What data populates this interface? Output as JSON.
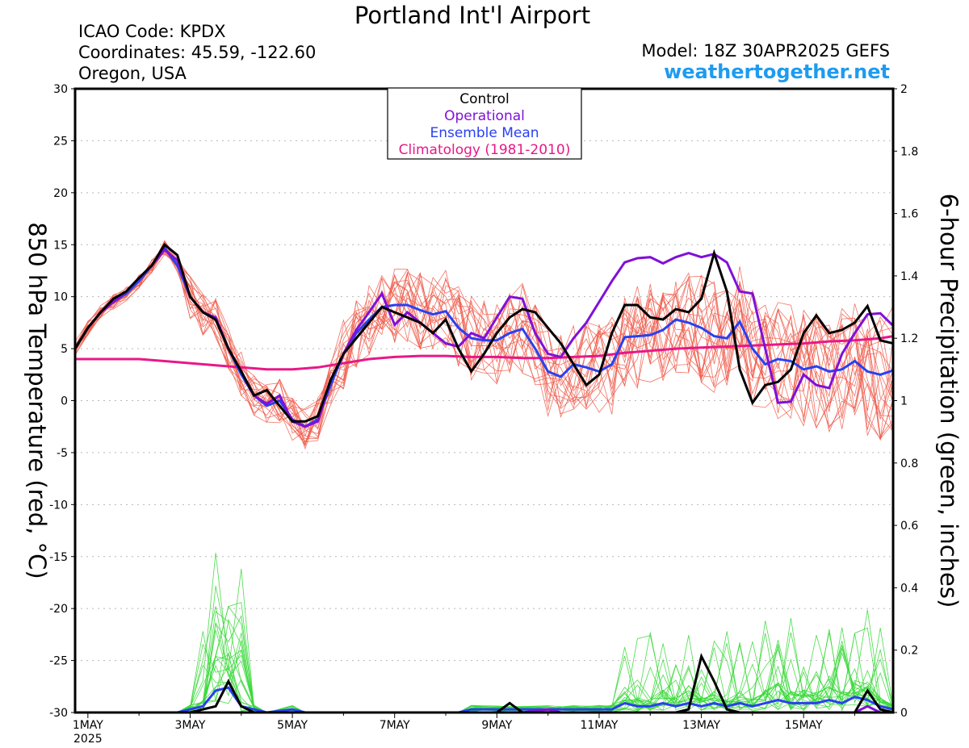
{
  "header": {
    "title": "Portland Int'l Airport",
    "icao": "ICAO Code: KPDX",
    "coords": "Coordinates: 45.59, -122.60",
    "region": "Oregon, USA",
    "model": "Model: 18Z 30APR2025 GEFS",
    "website": "weathertogether.net"
  },
  "legend": {
    "control": "Control",
    "operational": "Operational",
    "mean": "Ensemble Mean",
    "climo": "Climatology (1981-2010)"
  },
  "colors": {
    "control": "#000000",
    "operational": "#8010d8",
    "mean": "#2a40f0",
    "climo": "#e81888",
    "members_temp": "#f05a4a",
    "members_precip": "#38d838",
    "website": "#1e9bf0"
  },
  "chart_data": {
    "type": "line",
    "x_unit": "days since 1 May 2025 00Z",
    "x_ticks": [
      {
        "x": 0,
        "label": "1MAY",
        "sub": "2025"
      },
      {
        "x": 2,
        "label": "3MAY"
      },
      {
        "x": 4,
        "label": "5MAY"
      },
      {
        "x": 6,
        "label": "7MAY"
      },
      {
        "x": 8,
        "label": "9MAY"
      },
      {
        "x": 10,
        "label": "11MAY"
      },
      {
        "x": 12,
        "label": "13MAY"
      },
      {
        "x": 14,
        "label": "15MAY"
      }
    ],
    "xlim": [
      -0.25,
      15.75
    ],
    "ylabel_left": "850 hPa Temperature (red, °C)",
    "ylabel_right": "6-hour Precipitation (green, inches)",
    "ylim_left": [
      -30,
      30
    ],
    "ylim_right": [
      0,
      2
    ],
    "yticks_left": [
      30,
      25,
      20,
      15,
      10,
      5,
      0,
      -5,
      -10,
      -15,
      -20,
      -25,
      -30
    ],
    "yticks_right": [
      "2",
      "1.8",
      "1.6",
      "1.4",
      "1.2",
      "1",
      "0.8",
      "0.6",
      "0.4",
      "0.2",
      "0"
    ],
    "grid": true,
    "temperature": {
      "control": [
        [
          -0.25,
          5
        ],
        [
          0,
          7
        ],
        [
          0.25,
          8.5
        ],
        [
          0.5,
          9.8
        ],
        [
          0.75,
          10.5
        ],
        [
          1,
          11.8
        ],
        [
          1.25,
          13
        ],
        [
          1.5,
          15
        ],
        [
          1.75,
          14
        ],
        [
          2,
          10
        ],
        [
          2.25,
          8.5
        ],
        [
          2.5,
          7.8
        ],
        [
          2.75,
          5
        ],
        [
          3,
          2.8
        ],
        [
          3.25,
          0.5
        ],
        [
          3.5,
          1
        ],
        [
          3.75,
          -0.5
        ],
        [
          4,
          -2
        ],
        [
          4.25,
          -2
        ],
        [
          4.5,
          -1.5
        ],
        [
          4.75,
          2
        ],
        [
          5,
          4.5
        ],
        [
          5.25,
          6
        ],
        [
          5.5,
          7.5
        ],
        [
          5.75,
          9
        ],
        [
          6,
          8.5
        ],
        [
          6.25,
          8
        ],
        [
          6.5,
          7.5
        ],
        [
          6.75,
          6.5
        ],
        [
          7,
          7.8
        ],
        [
          7.25,
          5
        ],
        [
          7.5,
          2.8
        ],
        [
          7.75,
          4.5
        ],
        [
          8,
          6.5
        ],
        [
          8.25,
          8
        ],
        [
          8.5,
          8.8
        ],
        [
          8.75,
          8.5
        ],
        [
          9,
          7
        ],
        [
          9.25,
          5.5
        ],
        [
          9.5,
          3.5
        ],
        [
          9.75,
          1.5
        ],
        [
          10,
          2.5
        ],
        [
          10.25,
          6.5
        ],
        [
          10.5,
          9.2
        ],
        [
          10.75,
          9.2
        ],
        [
          11,
          8
        ],
        [
          11.25,
          7.8
        ],
        [
          11.5,
          8.8
        ],
        [
          11.75,
          8.5
        ],
        [
          12,
          9.8
        ],
        [
          12.25,
          14.2
        ],
        [
          12.5,
          10.5
        ],
        [
          12.75,
          3
        ],
        [
          13,
          -0.2
        ],
        [
          13.25,
          1.5
        ],
        [
          13.5,
          1.8
        ],
        [
          13.75,
          3
        ],
        [
          14,
          6.5
        ],
        [
          14.25,
          8.2
        ],
        [
          14.5,
          6.5
        ],
        [
          14.75,
          6.8
        ],
        [
          15,
          7.5
        ],
        [
          15.25,
          9.1
        ],
        [
          15.5,
          5.8
        ],
        [
          15.75,
          5.5
        ]
      ],
      "operational": [
        [
          -0.25,
          5
        ],
        [
          0,
          7
        ],
        [
          0.25,
          8.5
        ],
        [
          0.5,
          9.5
        ],
        [
          0.75,
          10.5
        ],
        [
          1,
          11.8
        ],
        [
          1.25,
          13
        ],
        [
          1.5,
          14.5
        ],
        [
          1.75,
          13.5
        ],
        [
          2,
          10
        ],
        [
          2.25,
          8.5
        ],
        [
          2.5,
          8
        ],
        [
          2.75,
          5
        ],
        [
          3,
          2.8
        ],
        [
          3.25,
          0.5
        ],
        [
          3.5,
          -0.3
        ],
        [
          3.75,
          0.5
        ],
        [
          4,
          -2
        ],
        [
          4.25,
          -2.5
        ],
        [
          4.5,
          -2
        ],
        [
          4.75,
          2
        ],
        [
          5,
          4.5
        ],
        [
          5.25,
          6.8
        ],
        [
          5.5,
          8.5
        ],
        [
          5.75,
          10.3
        ],
        [
          6,
          7.3
        ],
        [
          6.25,
          8.5
        ],
        [
          6.5,
          7.5
        ],
        [
          6.75,
          6.5
        ],
        [
          7,
          5.5
        ],
        [
          7.25,
          5.2
        ],
        [
          7.5,
          6.5
        ],
        [
          7.75,
          6
        ],
        [
          8,
          8
        ],
        [
          8.25,
          10
        ],
        [
          8.5,
          9.8
        ],
        [
          8.75,
          6.5
        ],
        [
          9,
          4.5
        ],
        [
          9.25,
          4.2
        ],
        [
          9.5,
          6
        ],
        [
          9.75,
          7.5
        ],
        [
          10,
          9.5
        ],
        [
          10.25,
          11.5
        ],
        [
          10.5,
          13.3
        ],
        [
          10.75,
          13.7
        ],
        [
          11,
          13.8
        ],
        [
          11.25,
          13.2
        ],
        [
          11.5,
          13.8
        ],
        [
          11.75,
          14.2
        ],
        [
          12,
          13.8
        ],
        [
          12.25,
          14.1
        ],
        [
          12.5,
          13.3
        ],
        [
          12.75,
          10.5
        ],
        [
          13,
          10.3
        ],
        [
          13.25,
          5
        ],
        [
          13.5,
          -0.2
        ],
        [
          13.75,
          -0.1
        ],
        [
          14,
          2.5
        ],
        [
          14.25,
          1.5
        ],
        [
          14.5,
          1.2
        ],
        [
          14.75,
          4.5
        ],
        [
          15,
          6.5
        ],
        [
          15.25,
          8.3
        ],
        [
          15.5,
          8.4
        ],
        [
          15.75,
          7.2
        ]
      ],
      "mean": [
        [
          -0.25,
          5
        ],
        [
          0,
          7
        ],
        [
          0.25,
          8.5
        ],
        [
          0.5,
          9.5
        ],
        [
          0.75,
          10.3
        ],
        [
          1,
          11.5
        ],
        [
          1.25,
          13
        ],
        [
          1.5,
          14.7
        ],
        [
          1.75,
          13
        ],
        [
          2,
          10
        ],
        [
          2.25,
          8.5
        ],
        [
          2.5,
          7.8
        ],
        [
          2.75,
          5
        ],
        [
          3,
          2.5
        ],
        [
          3.25,
          0.5
        ],
        [
          3.5,
          -0.5
        ],
        [
          3.75,
          0
        ],
        [
          4,
          -1.8
        ],
        [
          4.25,
          -2.5
        ],
        [
          4.5,
          -1.8
        ],
        [
          4.75,
          1.5
        ],
        [
          5,
          4.5
        ],
        [
          5.25,
          6.5
        ],
        [
          5.5,
          7.8
        ],
        [
          5.75,
          9
        ],
        [
          6,
          9.2
        ],
        [
          6.25,
          9.2
        ],
        [
          6.5,
          8.7
        ],
        [
          6.75,
          8.3
        ],
        [
          7,
          8.6
        ],
        [
          7.25,
          7
        ],
        [
          7.5,
          6
        ],
        [
          7.75,
          5.8
        ],
        [
          8,
          5.8
        ],
        [
          8.25,
          6.5
        ],
        [
          8.5,
          6.9
        ],
        [
          8.75,
          5
        ],
        [
          9,
          2.8
        ],
        [
          9.25,
          2.3
        ],
        [
          9.5,
          3.5
        ],
        [
          9.75,
          3.2
        ],
        [
          10,
          2.8
        ],
        [
          10.25,
          3.5
        ],
        [
          10.5,
          6.1
        ],
        [
          10.75,
          6.2
        ],
        [
          11,
          6.3
        ],
        [
          11.25,
          6.8
        ],
        [
          11.5,
          7.8
        ],
        [
          11.75,
          7.5
        ],
        [
          12,
          7
        ],
        [
          12.25,
          6.2
        ],
        [
          12.5,
          6
        ],
        [
          12.75,
          7.6
        ],
        [
          13,
          5
        ],
        [
          13.25,
          3.5
        ],
        [
          13.5,
          4
        ],
        [
          13.75,
          3.8
        ],
        [
          14,
          3
        ],
        [
          14.25,
          3.3
        ],
        [
          14.5,
          2.8
        ],
        [
          14.75,
          3
        ],
        [
          15,
          3.8
        ],
        [
          15.25,
          2.8
        ],
        [
          15.5,
          2.5
        ],
        [
          15.75,
          2.9
        ]
      ],
      "climatology": [
        [
          -0.25,
          4
        ],
        [
          0.5,
          4
        ],
        [
          1,
          4
        ],
        [
          1.5,
          3.8
        ],
        [
          2,
          3.6
        ],
        [
          2.5,
          3.4
        ],
        [
          3,
          3.2
        ],
        [
          3.5,
          3
        ],
        [
          4,
          3
        ],
        [
          4.5,
          3.2
        ],
        [
          5,
          3.6
        ],
        [
          5.5,
          4
        ],
        [
          6,
          4.2
        ],
        [
          6.5,
          4.3
        ],
        [
          7,
          4.3
        ],
        [
          7.5,
          4.2
        ],
        [
          8,
          4.2
        ],
        [
          8.5,
          4.1
        ],
        [
          9,
          4.1
        ],
        [
          9.5,
          4.2
        ],
        [
          10,
          4.3
        ],
        [
          10.5,
          4.6
        ],
        [
          11,
          4.8
        ],
        [
          11.5,
          5
        ],
        [
          12,
          5.1
        ],
        [
          12.5,
          5.2
        ],
        [
          13,
          5.3
        ],
        [
          13.5,
          5.4
        ],
        [
          14,
          5.5
        ],
        [
          14.5,
          5.7
        ],
        [
          15,
          5.8
        ],
        [
          15.5,
          6
        ],
        [
          15.75,
          6.2
        ]
      ]
    },
    "precipitation": {
      "control": [
        [
          -0.25,
          0
        ],
        [
          1.75,
          0
        ],
        [
          2,
          0
        ],
        [
          2.25,
          0.01
        ],
        [
          2.5,
          0.02
        ],
        [
          2.75,
          0.1
        ],
        [
          3,
          0.02
        ],
        [
          3.25,
          0
        ],
        [
          8,
          0
        ],
        [
          8.25,
          0.03
        ],
        [
          8.5,
          0
        ],
        [
          11.5,
          0
        ],
        [
          11.75,
          0.01
        ],
        [
          12,
          0.18
        ],
        [
          12.25,
          0.1
        ],
        [
          12.5,
          0.01
        ],
        [
          12.75,
          0
        ],
        [
          15,
          0
        ],
        [
          15.25,
          0.07
        ],
        [
          15.5,
          0.01
        ],
        [
          15.75,
          0
        ]
      ],
      "operational": [
        [
          -0.25,
          0
        ],
        [
          8.5,
          0
        ],
        [
          9,
          0.01
        ],
        [
          9.25,
          0
        ],
        [
          15,
          0
        ],
        [
          15.25,
          0.02
        ],
        [
          15.5,
          0
        ],
        [
          15.75,
          0
        ]
      ],
      "mean": [
        [
          -0.25,
          0
        ],
        [
          1.75,
          0
        ],
        [
          2,
          0.01
        ],
        [
          2.25,
          0.02
        ],
        [
          2.5,
          0.07
        ],
        [
          2.75,
          0.08
        ],
        [
          3,
          0.02
        ],
        [
          3.25,
          0.01
        ],
        [
          3.5,
          0
        ],
        [
          4,
          0.01
        ],
        [
          4.25,
          0
        ],
        [
          7.25,
          0
        ],
        [
          7.5,
          0.01
        ],
        [
          8,
          0.01
        ],
        [
          9,
          0.01
        ],
        [
          9.5,
          0.01
        ],
        [
          10,
          0.01
        ],
        [
          10.25,
          0.01
        ],
        [
          10.5,
          0.03
        ],
        [
          10.75,
          0.02
        ],
        [
          11,
          0.02
        ],
        [
          11.25,
          0.03
        ],
        [
          11.5,
          0.02
        ],
        [
          11.75,
          0.03
        ],
        [
          12,
          0.02
        ],
        [
          12.25,
          0.03
        ],
        [
          12.5,
          0.02
        ],
        [
          12.75,
          0.03
        ],
        [
          13,
          0.02
        ],
        [
          13.25,
          0.03
        ],
        [
          13.5,
          0.04
        ],
        [
          13.75,
          0.03
        ],
        [
          14,
          0.03
        ],
        [
          14.25,
          0.03
        ],
        [
          14.5,
          0.04
        ],
        [
          14.75,
          0.03
        ],
        [
          15,
          0.05
        ],
        [
          15.25,
          0.04
        ],
        [
          15.5,
          0.02
        ],
        [
          15.75,
          0.01
        ]
      ]
    }
  }
}
